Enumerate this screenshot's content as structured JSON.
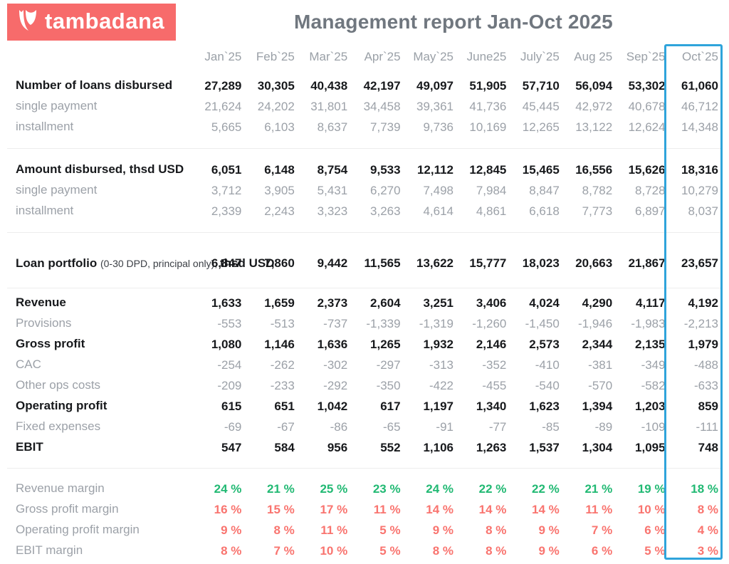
{
  "brand": {
    "name": "tambadana",
    "icon": "tambadana-logo-icon",
    "bg_color": "#F76B6B"
  },
  "header": {
    "title": "Management report Jan-Oct 2025"
  },
  "colors": {
    "brand_coral": "#F76B6B",
    "highlight_blue": "#2FA4DB",
    "positive_green": "#21B973",
    "negative_red": "#F9746F",
    "text_dark": "#17191C",
    "text_muted": "#9CA1A8",
    "title_gray": "#70777F"
  },
  "table": {
    "columns": [
      "Jan`25",
      "Feb`25",
      "Mar`25",
      "Apr`25",
      "May`25",
      "June25",
      "July`25",
      "Aug 25",
      "Sep`25",
      "Oct`25"
    ],
    "highlighted_column": "Oct`25",
    "sections": [
      {
        "rows": [
          {
            "label": "Number of loans disbursed",
            "label_style": "bold",
            "value_style": "bold",
            "values": [
              "27,289",
              "30,305",
              "40,438",
              "42,197",
              "49,097",
              "51,905",
              "57,710",
              "56,094",
              "53,302",
              "61,060"
            ]
          },
          {
            "label": "single payment",
            "label_style": "muted",
            "value_style": "muted",
            "values": [
              "21,624",
              "24,202",
              "31,801",
              "34,458",
              "39,361",
              "41,736",
              "45,445",
              "42,972",
              "40,678",
              "46,712"
            ]
          },
          {
            "label": "installment",
            "label_style": "muted",
            "value_style": "muted",
            "values": [
              "5,665",
              "6,103",
              "8,637",
              "7,739",
              "9,736",
              "10,169",
              "12,265",
              "13,122",
              "12,624",
              "14,348"
            ]
          }
        ]
      },
      {
        "rows": [
          {
            "label": "Amount disbursed, thsd USD",
            "label_style": "bold",
            "value_style": "bold",
            "values": [
              "6,051",
              "6,148",
              "8,754",
              "9,533",
              "12,112",
              "12,845",
              "15,465",
              "16,556",
              "15,626",
              "18,316"
            ]
          },
          {
            "label": "single payment",
            "label_style": "muted",
            "value_style": "muted",
            "values": [
              "3,712",
              "3,905",
              "5,431",
              "6,270",
              "7,498",
              "7,984",
              "8,847",
              "8,782",
              "8,728",
              "10,279"
            ]
          },
          {
            "label": "installment",
            "label_style": "muted",
            "value_style": "muted",
            "values": [
              "2,339",
              "2,243",
              "3,323",
              "3,263",
              "4,614",
              "4,861",
              "6,618",
              "7,773",
              "6,897",
              "8,037"
            ]
          }
        ]
      },
      {
        "divider_style": "default",
        "rows": [
          {
            "label_parts": [
              {
                "text": "Loan portfolio ",
                "style": "bold"
              },
              {
                "text": "(0-30 DPD, principal only), ",
                "style": "small"
              },
              {
                "text": "thsd USD",
                "style": "bold"
              }
            ],
            "tall": true,
            "label_style": "bold",
            "value_style": "bold",
            "values": [
              "6,847",
              "7,860",
              "9,442",
              "11,565",
              "13,622",
              "15,777",
              "18,023",
              "20,663",
              "21,867",
              "23,657"
            ]
          }
        ]
      },
      {
        "divider_style": "tight",
        "rows": [
          {
            "label": "Revenue",
            "label_style": "bold",
            "value_style": "bold",
            "values": [
              "1,633",
              "1,659",
              "2,373",
              "2,604",
              "3,251",
              "3,406",
              "4,024",
              "4,290",
              "4,117",
              "4,192"
            ]
          },
          {
            "label": "Provisions",
            "label_style": "muted",
            "value_style": "muted",
            "values": [
              "-553",
              "-513",
              "-737",
              "-1,339",
              "-1,319",
              "-1,260",
              "-1,450",
              "-1,946",
              "-1,983",
              "-2,213"
            ]
          },
          {
            "label": "Gross profit",
            "label_style": "bold",
            "value_style": "bold",
            "values": [
              "1,080",
              "1,146",
              "1,636",
              "1,265",
              "1,932",
              "2,146",
              "2,573",
              "2,344",
              "2,135",
              "1,979"
            ]
          },
          {
            "label": "CAC",
            "label_style": "muted",
            "value_style": "muted",
            "values": [
              "-254",
              "-262",
              "-302",
              "-297",
              "-313",
              "-352",
              "-410",
              "-381",
              "-349",
              "-488"
            ]
          },
          {
            "label": "Other ops costs",
            "label_style": "muted",
            "value_style": "muted",
            "values": [
              "-209",
              "-233",
              "-292",
              "-350",
              "-422",
              "-455",
              "-540",
              "-570",
              "-582",
              "-633"
            ]
          },
          {
            "label": "Operating profit",
            "label_style": "bold",
            "value_style": "bold",
            "values": [
              "615",
              "651",
              "1,042",
              "617",
              "1,197",
              "1,340",
              "1,623",
              "1,394",
              "1,203",
              "859"
            ]
          },
          {
            "label": "Fixed expenses",
            "label_style": "muted",
            "value_style": "muted",
            "values": [
              "-69",
              "-67",
              "-86",
              "-65",
              "-91",
              "-77",
              "-85",
              "-89",
              "-109",
              "-111"
            ]
          },
          {
            "label": "EBIT",
            "label_style": "bold",
            "value_style": "bold",
            "values": [
              "547",
              "584",
              "956",
              "552",
              "1,106",
              "1,263",
              "1,537",
              "1,304",
              "1,095",
              "748"
            ]
          }
        ]
      },
      {
        "divider_style": "wide",
        "rows": [
          {
            "label": "Revenue margin",
            "label_style": "muted",
            "value_style": "green",
            "values": [
              "24 %",
              "21 %",
              "25 %",
              "23 %",
              "24 %",
              "22 %",
              "22 %",
              "21 %",
              "19 %",
              "18 %"
            ]
          },
          {
            "label": "Gross profit margin",
            "label_style": "muted",
            "value_style": "red",
            "values": [
              "16 %",
              "15 %",
              "17 %",
              "11 %",
              "14 %",
              "14 %",
              "14 %",
              "11 %",
              "10 %",
              "8 %"
            ]
          },
          {
            "label": "Operating profit margin",
            "label_style": "muted",
            "value_style": "red",
            "values": [
              "9 %",
              "8 %",
              "11 %",
              "5 %",
              "9 %",
              "8 %",
              "9 %",
              "7 %",
              "6 %",
              "4 %"
            ]
          },
          {
            "label": "EBIT margin",
            "label_style": "muted",
            "value_style": "red",
            "values": [
              "8 %",
              "7 %",
              "10 %",
              "5 %",
              "8 %",
              "8 %",
              "9 %",
              "6 %",
              "5 %",
              "3 %"
            ]
          }
        ]
      }
    ]
  }
}
